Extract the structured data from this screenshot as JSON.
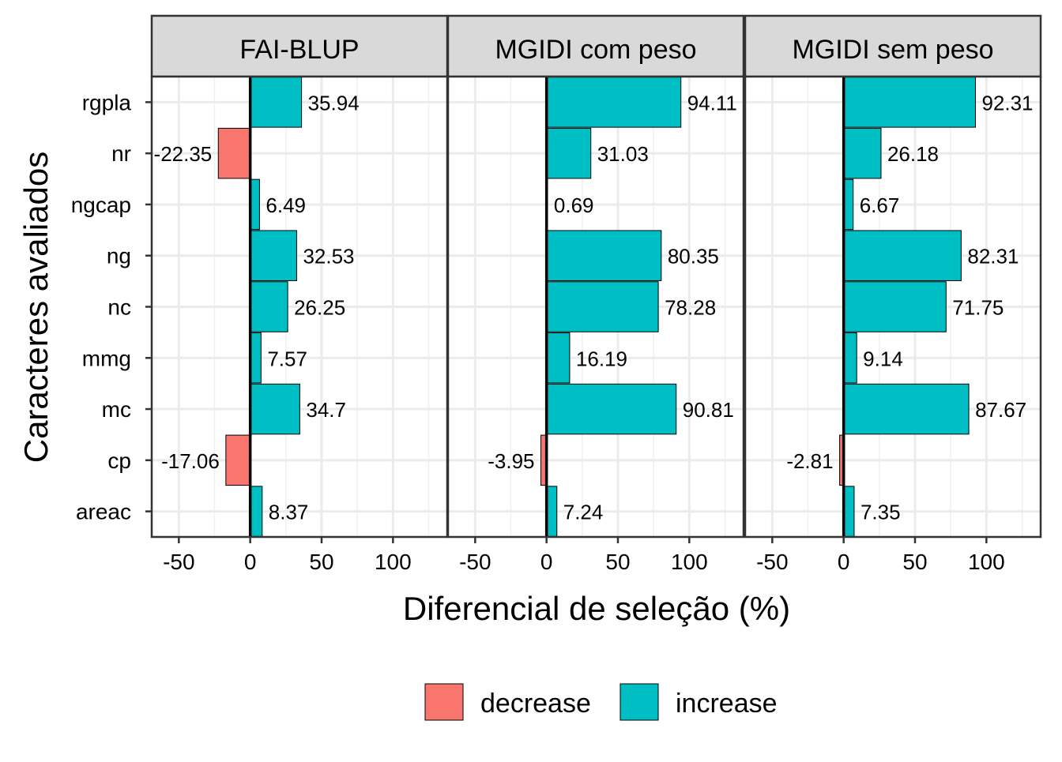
{
  "chart_data": {
    "type": "bar",
    "orientation": "horizontal",
    "facets": [
      "FAI-BLUP",
      "MGIDI com peso",
      "MGIDI sem peso"
    ],
    "categories": [
      "rgpla",
      "nr",
      "ngcap",
      "ng",
      "nc",
      "mmg",
      "mc",
      "cp",
      "areac"
    ],
    "series": [
      {
        "facet": "FAI-BLUP",
        "values": [
          35.94,
          -22.35,
          6.49,
          32.53,
          26.25,
          7.57,
          34.7,
          -17.06,
          8.37
        ],
        "labels": [
          "35.94",
          "-22.35",
          "6.49",
          "32.53",
          "26.25",
          "7.57",
          "34.7",
          "-17.06",
          "8.37"
        ]
      },
      {
        "facet": "MGIDI com peso",
        "values": [
          94.11,
          31.03,
          0.69,
          80.35,
          78.28,
          16.19,
          90.81,
          -3.95,
          7.24
        ],
        "labels": [
          "94.11",
          "31.03",
          "0.69",
          "80.35",
          "78.28",
          "16.19",
          "90.81",
          "-3.95",
          "7.24"
        ]
      },
      {
        "facet": "MGIDI sem peso",
        "values": [
          92.31,
          26.18,
          6.67,
          82.31,
          71.75,
          9.14,
          87.67,
          -2.81,
          7.35
        ],
        "labels": [
          "92.31",
          "26.18",
          "6.67",
          "82.31",
          "71.75",
          "9.14",
          "87.67",
          "-2.81",
          "7.35"
        ]
      }
    ],
    "xlabel": "Diferencial de seleção (%)",
    "ylabel": "Caracteres avaliados",
    "xlim": [
      -69,
      138
    ],
    "xticks": [
      -50,
      0,
      50,
      100
    ],
    "xtick_labels": [
      "-50",
      "0",
      "50",
      "100"
    ],
    "grid": true,
    "legend": {
      "placement": "bottom",
      "entries": [
        {
          "label": "decrease",
          "color": "#F8766D"
        },
        {
          "label": "increase",
          "color": "#00BFC4"
        }
      ]
    }
  }
}
